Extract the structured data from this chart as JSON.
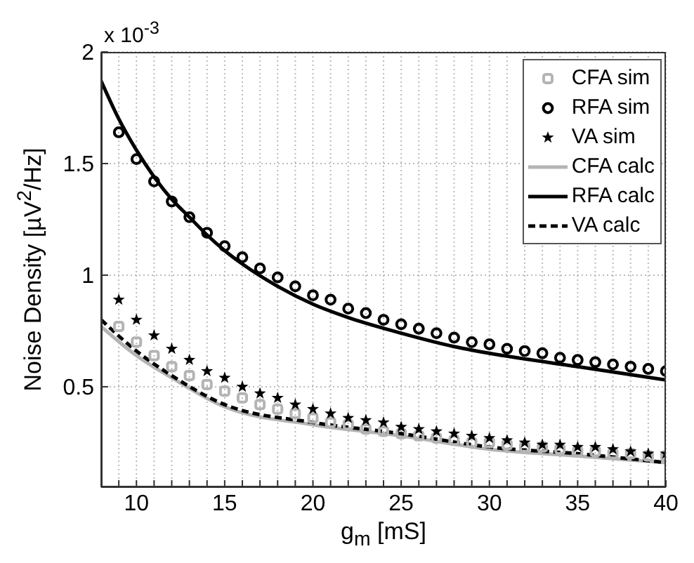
{
  "chart_data": {
    "type": "scatter",
    "xlabel": "g$_{m}$ [mS]",
    "ylabel": "Noise Density [µV$^{2}$/Hz]",
    "annotations": [
      "x 10$^{-3}$"
    ],
    "xlim": [
      8,
      40
    ],
    "xticks": [
      {
        "value": 9,
        "label": null
      },
      10,
      {
        "value": 11,
        "label": null
      },
      {
        "value": 12,
        "label": null
      },
      {
        "value": 13,
        "label": null
      },
      {
        "value": 14,
        "label": null
      },
      15,
      {
        "value": 16,
        "label": null
      },
      {
        "value": 17,
        "label": null
      },
      {
        "value": 18,
        "label": null
      },
      {
        "value": 19,
        "label": null
      },
      20,
      {
        "value": 21,
        "label": null
      },
      {
        "value": 22,
        "label": null
      },
      {
        "value": 23,
        "label": null
      },
      {
        "value": 24,
        "label": null
      },
      25,
      {
        "value": 26,
        "label": null
      },
      {
        "value": 27,
        "label": null
      },
      {
        "value": 28,
        "label": null
      },
      {
        "value": 29,
        "label": null
      },
      30,
      {
        "value": 31,
        "label": null
      },
      {
        "value": 32,
        "label": null
      },
      {
        "value": 33,
        "label": null
      },
      {
        "value": 34,
        "label": null
      },
      35,
      {
        "value": 36,
        "label": null
      },
      {
        "value": 37,
        "label": null
      },
      {
        "value": 38,
        "label": null
      },
      {
        "value": 39,
        "label": null
      },
      40
    ],
    "ylim": [
      0.05,
      2
    ],
    "yticks": [
      0.5,
      1,
      1.5,
      2
    ],
    "grid": true,
    "legend": "top right",
    "series": [
      {
        "name": "CFA sim",
        "marker": "square",
        "color": "#b4b4b4",
        "x": [
          9,
          10,
          11,
          12,
          13,
          14,
          15,
          16,
          17,
          18,
          19,
          20,
          21,
          22,
          23,
          24,
          25,
          26,
          27,
          28,
          29,
          30,
          31,
          32,
          33,
          34,
          35,
          36,
          37,
          38,
          39,
          40
        ],
        "values": [
          0.77,
          0.7,
          0.64,
          0.59,
          0.55,
          0.51,
          0.48,
          0.45,
          0.42,
          0.4,
          0.38,
          0.36,
          0.34,
          0.33,
          0.31,
          0.3,
          0.29,
          0.28,
          0.27,
          0.26,
          0.25,
          0.25,
          0.24,
          0.23,
          0.23,
          0.22,
          0.21,
          0.21,
          0.2,
          0.2,
          0.19,
          0.19
        ]
      },
      {
        "name": "RFA sim",
        "marker": "circle",
        "color": "#000000",
        "x": [
          9,
          10,
          11,
          12,
          13,
          14,
          15,
          16,
          17,
          18,
          19,
          20,
          21,
          22,
          23,
          24,
          25,
          26,
          27,
          28,
          29,
          30,
          31,
          32,
          33,
          34,
          35,
          36,
          37,
          38,
          39,
          40
        ],
        "values": [
          1.64,
          1.52,
          1.42,
          1.33,
          1.26,
          1.19,
          1.13,
          1.08,
          1.03,
          0.99,
          0.95,
          0.91,
          0.89,
          0.85,
          0.83,
          0.8,
          0.78,
          0.76,
          0.74,
          0.72,
          0.7,
          0.69,
          0.67,
          0.66,
          0.65,
          0.63,
          0.62,
          0.61,
          0.6,
          0.59,
          0.58,
          0.57
        ]
      },
      {
        "name": "VA sim",
        "marker": "star",
        "color": "#000000",
        "x": [
          9,
          10,
          11,
          12,
          13,
          14,
          15,
          16,
          17,
          18,
          19,
          20,
          21,
          22,
          23,
          24,
          25,
          26,
          27,
          28,
          29,
          30,
          31,
          32,
          33,
          34,
          35,
          36,
          37,
          38,
          39,
          40
        ],
        "values": [
          0.89,
          0.8,
          0.73,
          0.67,
          0.62,
          0.57,
          0.54,
          0.5,
          0.47,
          0.45,
          0.42,
          0.4,
          0.38,
          0.36,
          0.35,
          0.34,
          0.32,
          0.31,
          0.3,
          0.29,
          0.28,
          0.27,
          0.26,
          0.25,
          0.24,
          0.24,
          0.23,
          0.23,
          0.22,
          0.21,
          0.2,
          0.2
        ]
      },
      {
        "name": "CFA calc",
        "type": "line",
        "marker": "none",
        "line_style": "solid",
        "color": "#b4b4b4",
        "x": [
          8,
          10,
          12,
          15,
          20,
          25,
          30,
          35,
          40
        ],
        "values": [
          0.77,
          0.64,
          0.54,
          0.41,
          0.33,
          0.28,
          0.22,
          0.19,
          0.16
        ]
      },
      {
        "name": "RFA calc",
        "type": "line",
        "marker": "none",
        "line_style": "solid",
        "color": "#000000",
        "x": [
          8,
          9,
          10,
          11,
          12,
          13,
          14,
          15,
          16,
          18,
          20,
          22,
          25,
          28,
          30,
          35,
          40
        ],
        "values": [
          1.87,
          1.7,
          1.56,
          1.44,
          1.34,
          1.26,
          1.18,
          1.11,
          1.05,
          0.95,
          0.87,
          0.81,
          0.74,
          0.68,
          0.65,
          0.59,
          0.53
        ]
      },
      {
        "name": "VA calc",
        "type": "line",
        "marker": "none",
        "line_style": "dashed",
        "color": "#000000",
        "x": [
          8,
          10,
          12,
          15,
          20,
          25,
          30,
          35,
          40
        ],
        "values": [
          0.8,
          0.66,
          0.55,
          0.42,
          0.34,
          0.29,
          0.23,
          0.2,
          0.16
        ]
      }
    ]
  }
}
